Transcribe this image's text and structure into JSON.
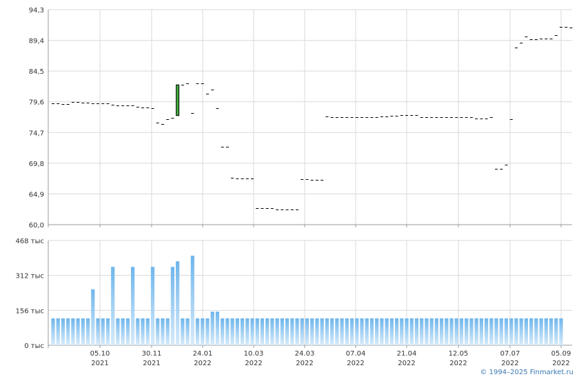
{
  "chart_data": [
    {
      "type": "ohlc",
      "ylim": [
        60.0,
        94.3
      ],
      "y_ticks": [
        "94,3",
        "89,4",
        "84,5",
        "79,6",
        "74,7",
        "69,8",
        "64,9",
        "60,0"
      ],
      "grid": true,
      "values": [
        79.3,
        79.3,
        79.2,
        79.2,
        79.6,
        79.6,
        79.5,
        79.5,
        79.4,
        79.4,
        79.3,
        79.3,
        79.1,
        79.0,
        79.0,
        79.0,
        79.0,
        78.8,
        78.7,
        78.7,
        78.6,
        76.3,
        76.1,
        76.8,
        77.0,
        77.4,
        82.3,
        82.5,
        77.8,
        82.5,
        82.5,
        80.9,
        81.5,
        78.6,
        72.4,
        72.4,
        67.5,
        67.4,
        67.4,
        67.4,
        67.4,
        62.6,
        62.6,
        62.6,
        62.6,
        62.4,
        62.4,
        62.4,
        62.4,
        62.4,
        67.3,
        67.3,
        67.2,
        67.2,
        67.2,
        77.3,
        77.2,
        77.2,
        77.2,
        77.2,
        77.2,
        77.2,
        77.2,
        77.2,
        77.2,
        77.2,
        77.3,
        77.3,
        77.4,
        77.4,
        77.5,
        77.5,
        77.5,
        77.5,
        77.1,
        77.1,
        77.1,
        77.1,
        77.1,
        77.1,
        77.1,
        77.1,
        77.1,
        77.1,
        77.1,
        76.9,
        76.9,
        76.9,
        77.1,
        68.9,
        68.9,
        69.6,
        76.8,
        88.3,
        89.0,
        90.0,
        89.6,
        89.6,
        89.7,
        89.7,
        89.7,
        90.2,
        91.6,
        91.6,
        91.4
      ],
      "candle": {
        "index": 25,
        "open": 77.4,
        "close": 82.3,
        "high": 82.3,
        "low": 77.4
      }
    },
    {
      "type": "bar",
      "ylim": [
        0,
        468
      ],
      "y_ticks": [
        "468 тыс",
        "312 тыс",
        "156 тыс",
        "0 тыс"
      ],
      "grid": true,
      "values": [
        120,
        120,
        120,
        120,
        120,
        120,
        120,
        120,
        250,
        120,
        120,
        120,
        350,
        120,
        120,
        120,
        350,
        120,
        120,
        120,
        350,
        120,
        120,
        120,
        350,
        375,
        120,
        120,
        400,
        120,
        120,
        120,
        150,
        150,
        120,
        120,
        120,
        120,
        120,
        120,
        120,
        120,
        120,
        120,
        120,
        120,
        120,
        120,
        120,
        120,
        120,
        120,
        120,
        120,
        120,
        120,
        120,
        120,
        120,
        120,
        120,
        120,
        120,
        120,
        120,
        120,
        120,
        120,
        120,
        120,
        120,
        120,
        120,
        120,
        120,
        120,
        120,
        120,
        120,
        120,
        120,
        120,
        120,
        120,
        120,
        120,
        120,
        120,
        120,
        120,
        120,
        120,
        120,
        120,
        120,
        120,
        120,
        120,
        120,
        120,
        120,
        120,
        120
      ]
    }
  ],
  "x_axis": {
    "ticks": [
      {
        "date": "05.10",
        "year": "2021"
      },
      {
        "date": "30.11",
        "year": "2021"
      },
      {
        "date": "24.01",
        "year": "2022"
      },
      {
        "date": "10.03",
        "year": "2022"
      },
      {
        "date": "24.03",
        "year": "2022"
      },
      {
        "date": "07.04",
        "year": "2022"
      },
      {
        "date": "21.04",
        "year": "2022"
      },
      {
        "date": "12.05",
        "year": "2022"
      },
      {
        "date": "07.07",
        "year": "2022"
      },
      {
        "date": "05.09",
        "year": "2022"
      }
    ]
  },
  "colors": {
    "grid": "#d9d9d9",
    "axis": "#9a9a9a",
    "price": "#000000",
    "candle_up": "#3fae3f",
    "volume_top": "#6fb6ec",
    "volume_bottom": "#d7ebfa",
    "copyright": "#3a78b5"
  },
  "copyright": "© 1994–2025 Finmarket.ru"
}
